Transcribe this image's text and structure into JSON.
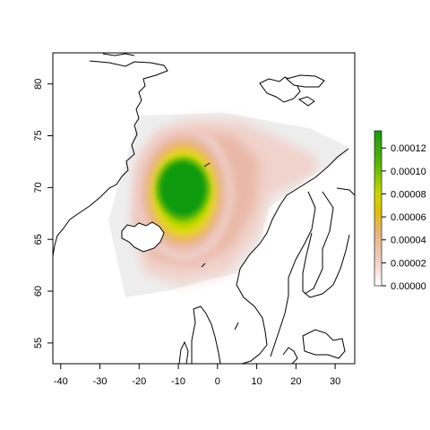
{
  "map": {
    "xlim": [
      -42,
      35
    ],
    "ylim": [
      53,
      83
    ],
    "x_ticks": [
      {
        "value": -40,
        "label": "-40"
      },
      {
        "value": -30,
        "label": "-30"
      },
      {
        "value": -20,
        "label": "-20"
      },
      {
        "value": -10,
        "label": "-10"
      },
      {
        "value": 0,
        "label": "0"
      },
      {
        "value": 10,
        "label": "10"
      },
      {
        "value": 20,
        "label": "20"
      },
      {
        "value": 30,
        "label": "30"
      }
    ],
    "y_ticks": [
      {
        "value": 55,
        "label": "55"
      },
      {
        "value": 60,
        "label": "60"
      },
      {
        "value": 65,
        "label": "65"
      },
      {
        "value": 70,
        "label": "70"
      },
      {
        "value": 75,
        "label": "75"
      },
      {
        "value": 80,
        "label": "80"
      }
    ],
    "colors": {
      "background_region": "#eeeeee",
      "low": "#f1d8d3",
      "mid": "#e9b35a",
      "yellow": "#e8e800",
      "high": "#1a9f10",
      "outline": "#000000"
    }
  },
  "legend": {
    "ticks": [
      {
        "value": 0.0,
        "label": "0.00000"
      },
      {
        "value": 2e-05,
        "label": "0.00002"
      },
      {
        "value": 4e-05,
        "label": "0.00004"
      },
      {
        "value": 6e-05,
        "label": "0.00006"
      },
      {
        "value": 8e-05,
        "label": "0.00008"
      },
      {
        "value": 0.0001,
        "label": "0.00010"
      },
      {
        "value": 0.00012,
        "label": "0.00012"
      }
    ],
    "max": 0.000135
  }
}
